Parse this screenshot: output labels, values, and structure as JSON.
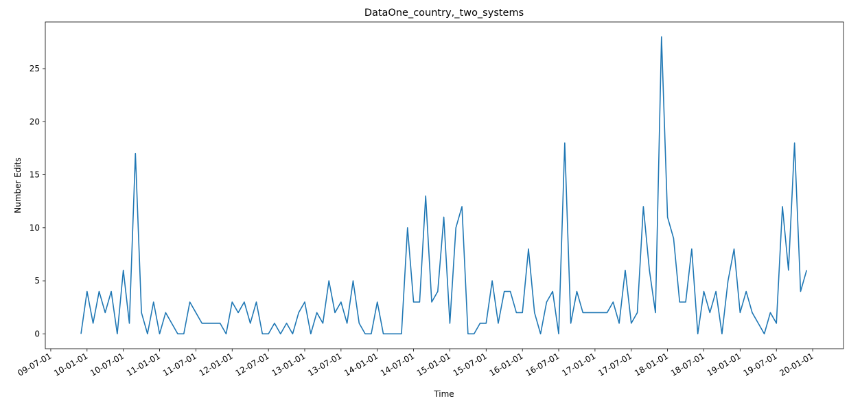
{
  "chart_data": {
    "type": "line",
    "title": "DataOne_country,_two_systems",
    "x_label": "Time",
    "y_label": "Number Edits",
    "x": [
      "09-12-01",
      "10-01-01",
      "10-02-01",
      "10-03-01",
      "10-04-01",
      "10-05-01",
      "10-06-01",
      "10-07-01",
      "10-08-01",
      "10-09-01",
      "10-10-01",
      "10-11-01",
      "10-12-01",
      "11-01-01",
      "11-02-01",
      "11-03-01",
      "11-04-01",
      "11-05-01",
      "11-06-01",
      "11-07-01",
      "11-08-01",
      "11-09-01",
      "11-10-01",
      "11-11-01",
      "11-12-01",
      "12-01-01",
      "12-02-01",
      "12-03-01",
      "12-04-01",
      "12-05-01",
      "12-06-01",
      "12-07-01",
      "12-08-01",
      "12-09-01",
      "12-10-01",
      "12-11-01",
      "12-12-01",
      "13-01-01",
      "13-02-01",
      "13-03-01",
      "13-04-01",
      "13-05-01",
      "13-06-01",
      "13-07-01",
      "13-08-01",
      "13-09-01",
      "13-10-01",
      "13-11-01",
      "13-12-01",
      "14-01-01",
      "14-02-01",
      "14-03-01",
      "14-04-01",
      "14-05-01",
      "14-06-01",
      "14-07-01",
      "14-08-01",
      "14-09-01",
      "14-10-01",
      "14-11-01",
      "14-12-01",
      "15-01-01",
      "15-02-01",
      "15-03-01",
      "15-04-01",
      "15-05-01",
      "15-06-01",
      "15-07-01",
      "15-08-01",
      "15-09-01",
      "15-10-01",
      "15-11-01",
      "15-12-01",
      "16-01-01",
      "16-02-01",
      "16-03-01",
      "16-04-01",
      "16-05-01",
      "16-06-01",
      "16-07-01",
      "16-08-01",
      "16-09-01",
      "16-10-01",
      "16-11-01",
      "16-12-01",
      "17-01-01",
      "17-02-01",
      "17-03-01",
      "17-04-01",
      "17-05-01",
      "17-06-01",
      "17-07-01",
      "17-08-01",
      "17-09-01",
      "17-10-01",
      "17-11-01",
      "17-12-01",
      "18-01-01",
      "18-02-01",
      "18-03-01",
      "18-04-01",
      "18-05-01",
      "18-06-01",
      "18-07-01",
      "18-08-01",
      "18-09-01",
      "18-10-01",
      "18-11-01",
      "18-12-01",
      "19-01-01",
      "19-02-01",
      "19-03-01",
      "19-04-01",
      "19-05-01",
      "19-06-01",
      "19-07-01",
      "19-08-01",
      "19-09-01",
      "19-10-01",
      "19-11-01",
      "19-12-01"
    ],
    "series": [
      {
        "name": "Number Edits",
        "color": "#1f77b4",
        "values": [
          0,
          4,
          1,
          4,
          2,
          4,
          0,
          6,
          1,
          17,
          2,
          0,
          3,
          0,
          2,
          1,
          0,
          0,
          3,
          2,
          1,
          1,
          1,
          1,
          0,
          3,
          2,
          3,
          1,
          3,
          0,
          0,
          1,
          0,
          1,
          0,
          2,
          3,
          0,
          2,
          1,
          5,
          2,
          3,
          1,
          5,
          1,
          0,
          0,
          3,
          0,
          0,
          0,
          0,
          10,
          3,
          3,
          13,
          3,
          4,
          11,
          1,
          10,
          12,
          0,
          0,
          1,
          1,
          5,
          1,
          4,
          4,
          2,
          2,
          8,
          2,
          0,
          3,
          4,
          0,
          18,
          1,
          4,
          2,
          2,
          2,
          2,
          2,
          3,
          1,
          6,
          1,
          2,
          12,
          6,
          2,
          28,
          11,
          9,
          3,
          3,
          8,
          0,
          4,
          2,
          4,
          0,
          5,
          8,
          2,
          4,
          2,
          1,
          0,
          2,
          1,
          12,
          6,
          18,
          4,
          6
        ]
      }
    ],
    "xlim": [
      "09-06-04",
      "20-06-04"
    ],
    "xticks": [
      "09-07-01",
      "10-01-01",
      "10-07-01",
      "11-01-01",
      "11-07-01",
      "12-01-01",
      "12-07-01",
      "13-01-01",
      "13-07-01",
      "14-01-01",
      "14-07-01",
      "15-01-01",
      "15-07-01",
      "16-01-01",
      "16-07-01",
      "17-01-01",
      "17-07-01",
      "18-01-01",
      "18-07-01",
      "19-01-01",
      "19-07-01",
      "20-01-01"
    ],
    "ylim": [
      -1.4,
      29.4
    ],
    "yticks": [
      0,
      5,
      10,
      15,
      20,
      25
    ],
    "grid": false
  }
}
